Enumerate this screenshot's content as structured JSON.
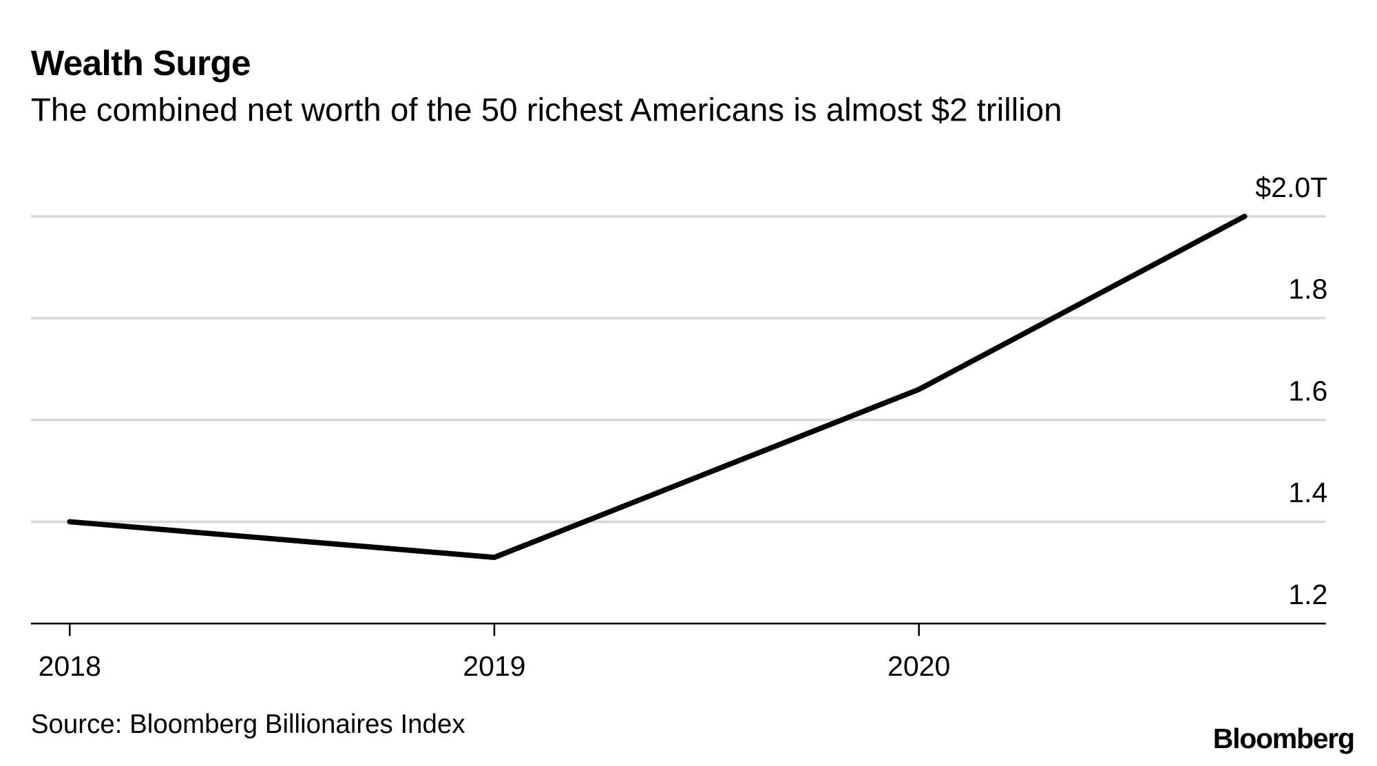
{
  "chart_data": {
    "type": "line",
    "title": "Wealth Surge",
    "subtitle": "The combined net worth of the 50 richest Americans is almost $2 trillion",
    "source": "Source: Bloomberg Billionaires Index",
    "brand": "Bloomberg",
    "x": [
      "2018-01-01",
      "2019-01-01",
      "2020-01-01",
      "2020-10-07"
    ],
    "values": [
      1.4,
      1.33,
      1.66,
      2.0
    ],
    "x_tick_labels": [
      "2018",
      "2019",
      "2020"
    ],
    "y_ticks": [
      1.2,
      1.4,
      1.6,
      1.8,
      2.0
    ],
    "y_tick_labels": [
      "1.2",
      "1.4",
      "1.6",
      "1.8",
      "$2.0T"
    ],
    "ylim": [
      1.2,
      2.0
    ],
    "y_axis_position": "right",
    "grid": true,
    "line_color": "#000000",
    "grid_color": "#d9d9d9"
  }
}
